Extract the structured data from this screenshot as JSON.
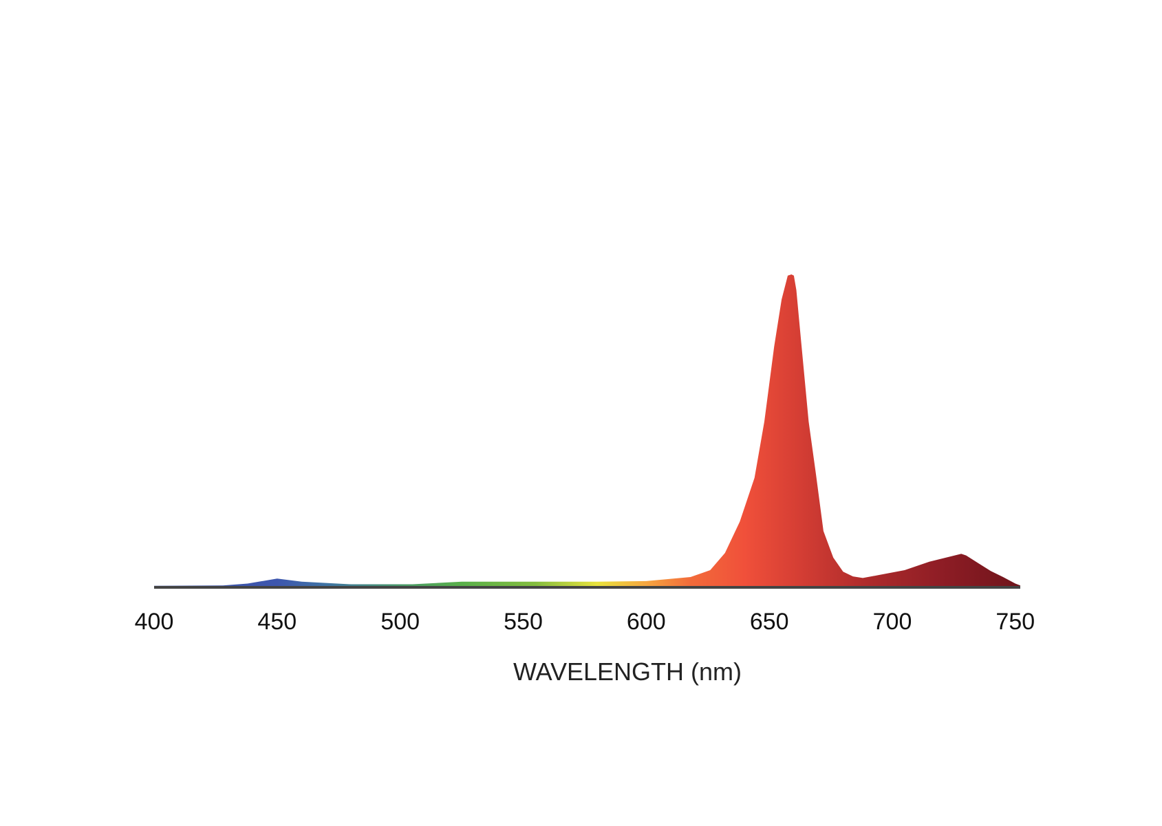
{
  "chart_data": {
    "type": "area",
    "title": "",
    "xlabel": "WAVELENGTH (nm)",
    "ylabel": "",
    "xlim": [
      400,
      752
    ],
    "ylim": [
      0,
      100
    ],
    "grid": false,
    "legend": "none",
    "x_ticks": [
      400,
      450,
      500,
      550,
      600,
      650,
      700,
      750
    ],
    "series": [
      {
        "x": [
          400,
          428,
          438,
          450,
          460,
          480,
          505,
          525,
          560,
          580,
          600,
          618,
          626,
          632,
          638,
          644,
          648,
          652,
          655,
          657.5,
          659,
          660,
          661,
          663,
          666,
          669,
          672,
          676,
          680,
          684,
          688,
          695,
          705,
          715,
          728,
          730,
          735,
          740,
          745,
          750,
          752
        ],
        "values": [
          0.5,
          0.6,
          1.2,
          2.8,
          1.8,
          1.0,
          1.0,
          1.8,
          1.8,
          1.8,
          2.0,
          3.3,
          5.5,
          11,
          21,
          35,
          53,
          77,
          92,
          99.6,
          100,
          99.6,
          95,
          78,
          53,
          36,
          18,
          9.5,
          5,
          3.5,
          3.0,
          4.0,
          5.5,
          8.2,
          10.7,
          10.2,
          7.7,
          5.2,
          3.3,
          1.2,
          0.6
        ]
      }
    ],
    "gradient_stops": [
      {
        "x": 400,
        "color": "#3b52a3"
      },
      {
        "x": 450,
        "color": "#3d56ae"
      },
      {
        "x": 470,
        "color": "#3f74a4"
      },
      {
        "x": 500,
        "color": "#4a9a6a"
      },
      {
        "x": 525,
        "color": "#59b04a"
      },
      {
        "x": 555,
        "color": "#84bd3e"
      },
      {
        "x": 580,
        "color": "#e8e23d"
      },
      {
        "x": 600,
        "color": "#f6a640"
      },
      {
        "x": 618,
        "color": "#f26b3a"
      },
      {
        "x": 640,
        "color": "#f0503a"
      },
      {
        "x": 662,
        "color": "#d53e34"
      },
      {
        "x": 690,
        "color": "#ad2b2b"
      },
      {
        "x": 720,
        "color": "#8e1d25"
      },
      {
        "x": 752,
        "color": "#6f141b"
      }
    ],
    "baseline_color": "#444444"
  }
}
